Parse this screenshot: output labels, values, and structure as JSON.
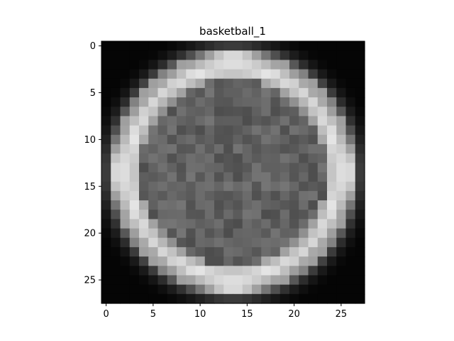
{
  "chart_data": {
    "type": "heatmap",
    "title": "basketball_1",
    "xlabel": "",
    "ylabel": "",
    "colormap": "gray",
    "shape": [
      28,
      28
    ],
    "xlim": [
      -0.5,
      27.5
    ],
    "ylim": [
      27.5,
      -0.5
    ],
    "xticks": [
      0,
      5,
      10,
      15,
      20,
      25
    ],
    "yticks": [
      0,
      5,
      10,
      15,
      20,
      25
    ],
    "xtick_labels": [
      "0",
      "5",
      "10",
      "15",
      "20",
      "25"
    ],
    "ytick_labels": [
      "0",
      "5",
      "10",
      "15",
      "20",
      "25"
    ],
    "value_range": [
      0,
      1
    ],
    "image_model": {
      "kind": "radial-estimate",
      "center": [
        13.5,
        13.5
      ],
      "rim_radius": 11.2,
      "rim_width": 1.3,
      "rim_value": 0.86,
      "inner_value": 0.38,
      "outer_value": 0.02
    }
  }
}
